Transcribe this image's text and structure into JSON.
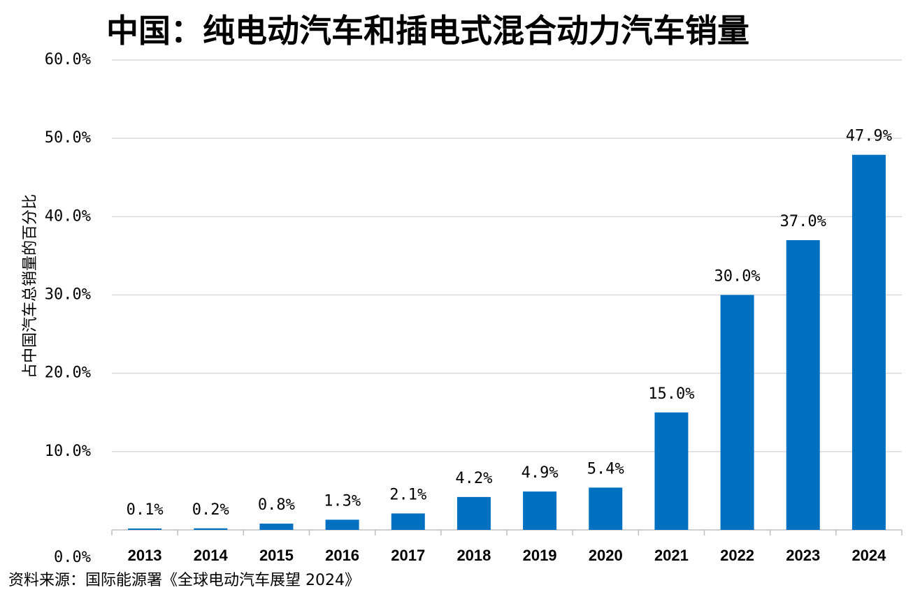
{
  "chart_data": {
    "type": "bar",
    "title": "中国：纯电动汽车和插电式混合动力汽车销量",
    "ylabel": "占中国汽车总销量的百分比",
    "xlabel": "",
    "categories": [
      "2013",
      "2014",
      "2015",
      "2016",
      "2017",
      "2018",
      "2019",
      "2020",
      "2021",
      "2022",
      "2023",
      "2024"
    ],
    "values": [
      0.1,
      0.2,
      0.8,
      1.3,
      2.1,
      4.2,
      4.9,
      5.4,
      15.0,
      30.0,
      37.0,
      47.9
    ],
    "data_labels": [
      "0.1%",
      "0.2%",
      "0.8%",
      "1.3%",
      "2.1%",
      "4.2%",
      "4.9%",
      "5.4%",
      "15.0%",
      "30.0%",
      "37.0%",
      "47.9%"
    ],
    "ylim": [
      0,
      60
    ],
    "yticks": [
      0,
      10,
      20,
      30,
      40,
      50,
      60
    ],
    "ytick_labels": [
      "0.0%",
      "10.0%",
      "20.0%",
      "30.0%",
      "40.0%",
      "50.0%",
      "60.0%"
    ],
    "grid": true,
    "legend": "none",
    "bar_color": "#0070C0",
    "grid_color": "#D9D9D9",
    "source": "资料来源：国际能源署《全球电动汽车展望 2024》"
  }
}
